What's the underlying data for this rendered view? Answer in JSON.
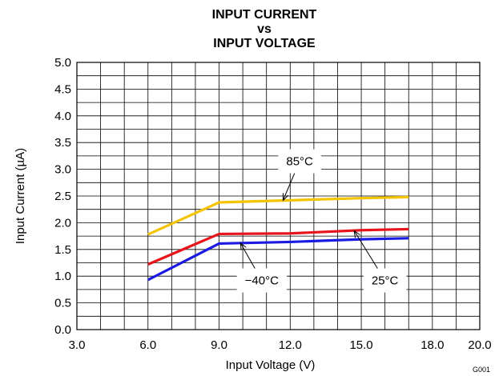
{
  "chart_data": {
    "type": "line",
    "title_lines": [
      "INPUT CURRENT",
      "vs",
      "INPUT VOLTAGE"
    ],
    "xlabel": "Input Voltage (V)",
    "ylabel": "Input Current (µA)",
    "xlim": [
      3.0,
      20.0
    ],
    "ylim": [
      0.0,
      5.0
    ],
    "x_ticks": [
      "3.0",
      "6.0",
      "9.0",
      "12.0",
      "15.0",
      "18.0",
      "20.0"
    ],
    "y_ticks": [
      "0.0",
      "0.5",
      "1.0",
      "1.5",
      "2.0",
      "2.5",
      "3.0",
      "3.5",
      "4.0",
      "4.5",
      "5.0"
    ],
    "grid": true,
    "series": [
      {
        "name": "85°C",
        "color": "#f5c400",
        "x": [
          6,
          9,
          12,
          15,
          17
        ],
        "y": [
          1.78,
          2.38,
          2.42,
          2.46,
          2.48
        ]
      },
      {
        "name": "25°C",
        "color": "#e8141b",
        "x": [
          6,
          9,
          12,
          15,
          17
        ],
        "y": [
          1.22,
          1.79,
          1.8,
          1.86,
          1.88
        ]
      },
      {
        "name": "−40°C",
        "color": "#1a1ae0",
        "x": [
          6,
          9,
          12,
          15,
          17
        ],
        "y": [
          0.93,
          1.61,
          1.64,
          1.69,
          1.71
        ]
      }
    ],
    "annotations": [
      {
        "text": "85°C",
        "series": 0,
        "x": 12.4,
        "y": 3.15,
        "arrow_to": [
          11.7,
          2.42
        ]
      },
      {
        "text": "−40°C",
        "series": 2,
        "x": 10.8,
        "y": 0.92,
        "arrow_to": [
          9.9,
          1.62
        ]
      },
      {
        "text": "25°C",
        "series": 1,
        "x": 16.0,
        "y": 0.92,
        "arrow_to": [
          14.7,
          1.85
        ]
      }
    ],
    "figure_id": "G001"
  }
}
